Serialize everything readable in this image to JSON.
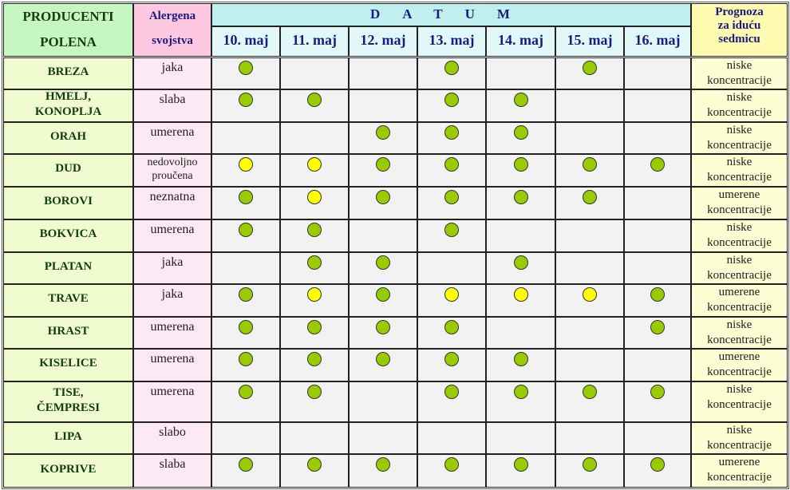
{
  "header": {
    "producenti": "PRODUCENTI",
    "polena": "POLENA",
    "alergena": "Alergena",
    "svojstva": "svojstva",
    "datum": "DATUM",
    "prognoza": [
      "Prognoza",
      "za iduću",
      "sedmicu"
    ],
    "dates": [
      "10. maj",
      "11. maj",
      "12. maj",
      "13. maj",
      "14. maj",
      "15. maj",
      "16. maj"
    ]
  },
  "colors": {
    "green": "#99cc00",
    "yellow": "#ffff00"
  },
  "rows": [
    {
      "name": [
        "BREZA"
      ],
      "allergen": [
        "jaka"
      ],
      "days": [
        "g",
        "",
        "",
        "g",
        "",
        "g",
        ""
      ],
      "forecast": [
        "niske",
        "koncentracije"
      ]
    },
    {
      "name": [
        "HMELJ,",
        "KONOPLJA"
      ],
      "allergen": [
        "slaba"
      ],
      "days": [
        "g",
        "g",
        "",
        "g",
        "g",
        "",
        ""
      ],
      "forecast": [
        "niske",
        "koncentracije"
      ]
    },
    {
      "name": [
        "ORAH"
      ],
      "allergen": [
        "umerena"
      ],
      "days": [
        "",
        "",
        "g",
        "g",
        "g",
        "",
        ""
      ],
      "forecast": [
        "niske",
        "koncentracije"
      ]
    },
    {
      "name": [
        "DUD"
      ],
      "allergen": [
        "nedovoljno",
        "proučena"
      ],
      "days": [
        "y",
        "y",
        "g",
        "g",
        "g",
        "g",
        "g"
      ],
      "forecast": [
        "niske",
        "koncentracije"
      ]
    },
    {
      "name": [
        "BOROVI"
      ],
      "allergen": [
        "neznatna"
      ],
      "days": [
        "g",
        "y",
        "g",
        "g",
        "g",
        "g",
        ""
      ],
      "forecast": [
        "umerene",
        "koncentracije"
      ]
    },
    {
      "name": [
        "BOKVICA"
      ],
      "allergen": [
        "umerena"
      ],
      "days": [
        "g",
        "g",
        "",
        "g",
        "",
        "",
        ""
      ],
      "forecast": [
        "niske",
        "koncentracije"
      ]
    },
    {
      "name": [
        "PLATAN"
      ],
      "allergen": [
        "jaka"
      ],
      "days": [
        "",
        "g",
        "g",
        "",
        "g",
        "",
        ""
      ],
      "forecast": [
        "niske",
        "koncentracije"
      ]
    },
    {
      "name": [
        "TRAVE"
      ],
      "allergen": [
        "jaka"
      ],
      "days": [
        "g",
        "y",
        "g",
        "y",
        "y",
        "y",
        "g"
      ],
      "forecast": [
        "umerene",
        "koncentracije"
      ]
    },
    {
      "name": [
        "HRAST"
      ],
      "allergen": [
        "umerena"
      ],
      "days": [
        "g",
        "g",
        "g",
        "g",
        "",
        "",
        "g"
      ],
      "forecast": [
        "niske",
        "koncentracije"
      ]
    },
    {
      "name": [
        "KISELICE"
      ],
      "allergen": [
        "umerena"
      ],
      "days": [
        "g",
        "g",
        "g",
        "g",
        "g",
        "",
        ""
      ],
      "forecast": [
        "umerene",
        "koncentracije"
      ]
    },
    {
      "name": [
        "TISE,",
        "ČEMPRESI"
      ],
      "allergen": [
        "umerena"
      ],
      "days": [
        "g",
        "g",
        "",
        "g",
        "g",
        "g",
        "g"
      ],
      "forecast": [
        "niske",
        "koncentracije"
      ]
    },
    {
      "name": [
        "LIPA"
      ],
      "allergen": [
        "slabo"
      ],
      "days": [
        "",
        "",
        "",
        "",
        "",
        "",
        ""
      ],
      "forecast": [
        "niske",
        "koncentracije"
      ]
    },
    {
      "name": [
        "KOPRIVE"
      ],
      "allergen": [
        "slaba"
      ],
      "days": [
        "g",
        "g",
        "g",
        "g",
        "g",
        "g",
        "g"
      ],
      "forecast": [
        "umerene",
        "koncentracije"
      ]
    }
  ]
}
